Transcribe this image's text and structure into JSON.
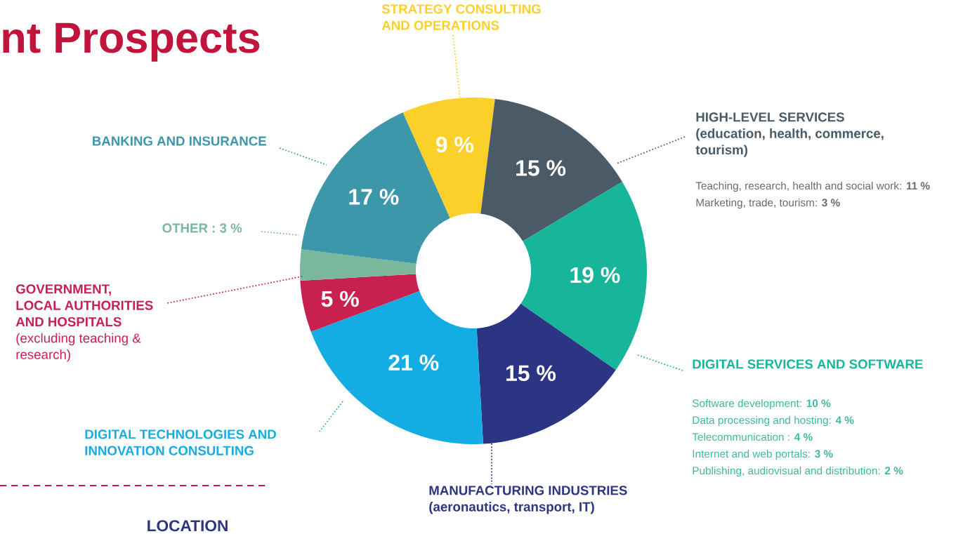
{
  "chart_data": {
    "type": "donut",
    "title": "nt Prospects",
    "categories": [
      "STRATEGY CONSULTING AND OPERATIONS",
      "HIGH-LEVEL SERVICES (education, health, commerce, tourism)",
      "DIGITAL SERVICES AND SOFTWARE",
      "MANUFACTURING INDUSTRIES (aeronautics, transport, IT)",
      "DIGITAL TECHNOLOGIES AND INNOVATION CONSULTING",
      "**GOVERNMENT, LOCAL AUTHORITIES AND HOSPITALS** (excluding teaching & research)",
      "OTHER : 3 %",
      "BANKING AND INSURANCE"
    ],
    "values": [
      9,
      15,
      19,
      15,
      21,
      5,
      3,
      17
    ],
    "colors": [
      "#fcd02a",
      "#4a5a66",
      "#17b69b",
      "#2b3583",
      "#14ade3",
      "#c8204f",
      "#7ab89e",
      "#3d97ab"
    ],
    "value_labels": [
      "9 %",
      "15 %",
      "19 %",
      "15 %",
      "21 %",
      "5 %",
      null,
      "17 %"
    ],
    "annotations": [
      "Teaching, research, health and social work: **11 %**",
      "Marketing, trade, tourism: **3 %**",
      "Software development: **10 %**",
      "Data processing and hosting:  **4 %**",
      "Telecommunication : **4 %**",
      "Internet and web portals: **3 %**",
      "Publishing, audiovisual and distribution: **2 %**",
      "LOCATION"
    ]
  }
}
